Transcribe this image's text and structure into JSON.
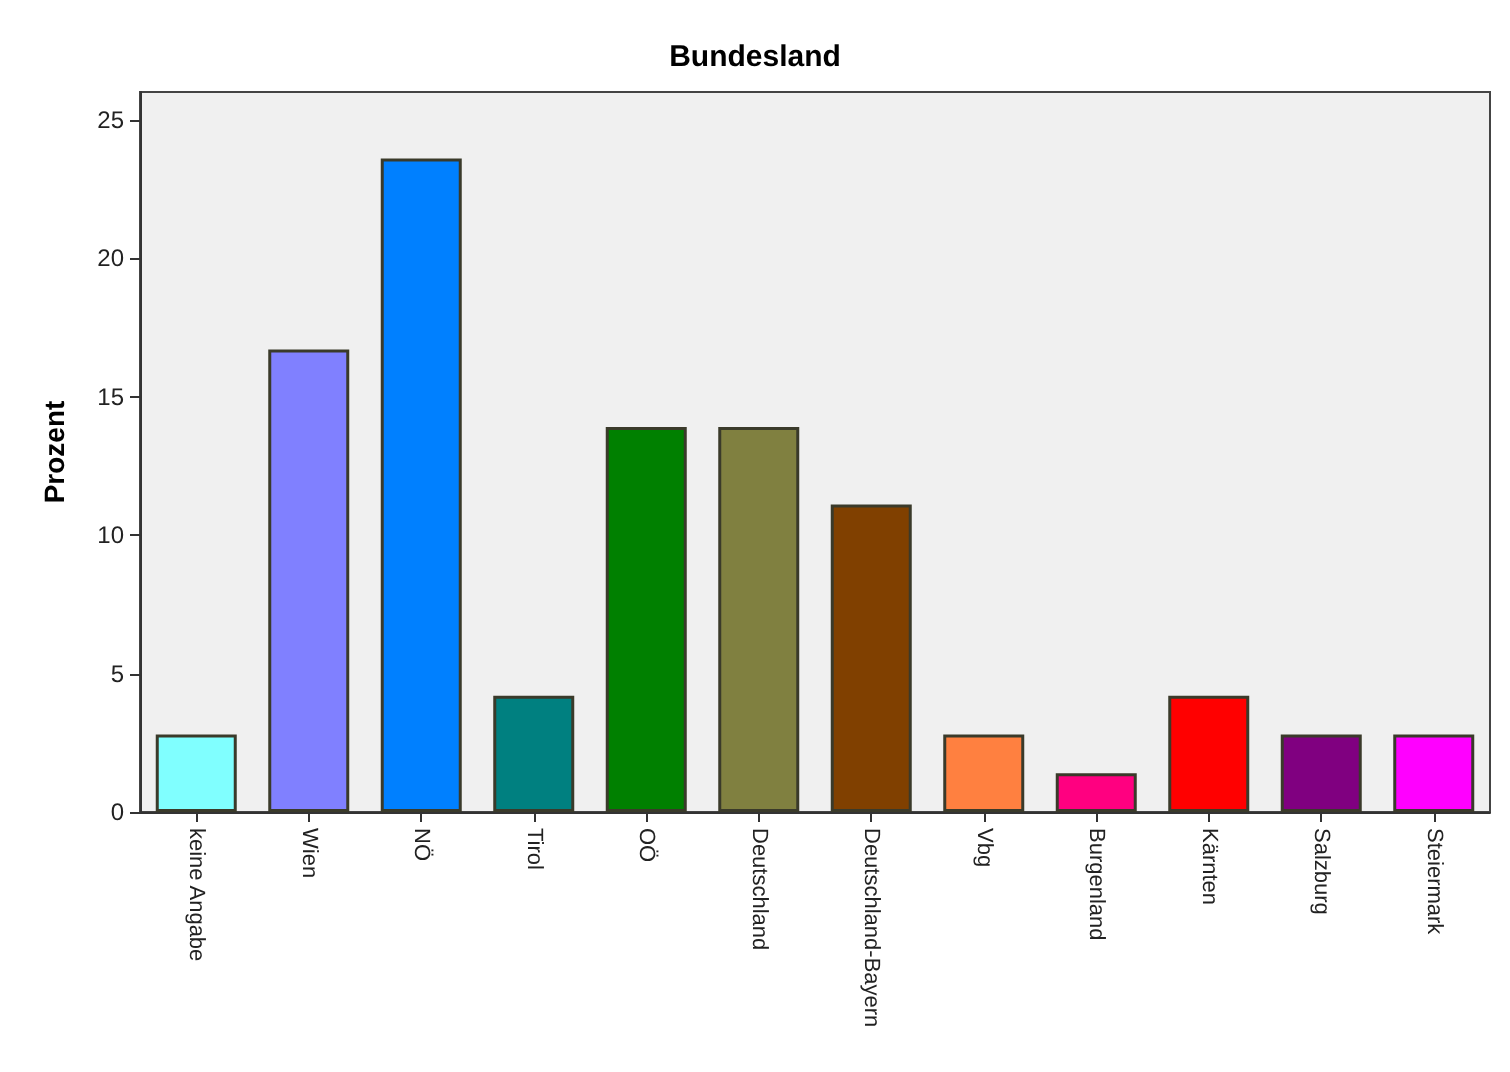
{
  "chart_data": {
    "type": "bar",
    "title": "Bundesland",
    "ylabel": "Prozent",
    "categories": [
      "keine Angabe",
      "Wien",
      "NÖ",
      "Tirol",
      "OÖ",
      "Deutschland",
      "Deutschland-Bayern",
      "Vbg",
      "Burgenland",
      "Kärnten",
      "Salzburg",
      "Steiermark"
    ],
    "values": [
      2.8,
      16.7,
      23.6,
      4.2,
      13.9,
      13.9,
      11.1,
      2.8,
      1.4,
      4.2,
      2.8,
      2.8
    ],
    "colors": [
      "#80ffff",
      "#8080ff",
      "#0080ff",
      "#008080",
      "#008000",
      "#808040",
      "#804000",
      "#ff8040",
      "#ff0080",
      "#ff0000",
      "#800080",
      "#ff00ff"
    ],
    "ylim": [
      0,
      26
    ],
    "yticks": [
      0,
      5,
      10,
      15,
      20,
      25
    ]
  }
}
